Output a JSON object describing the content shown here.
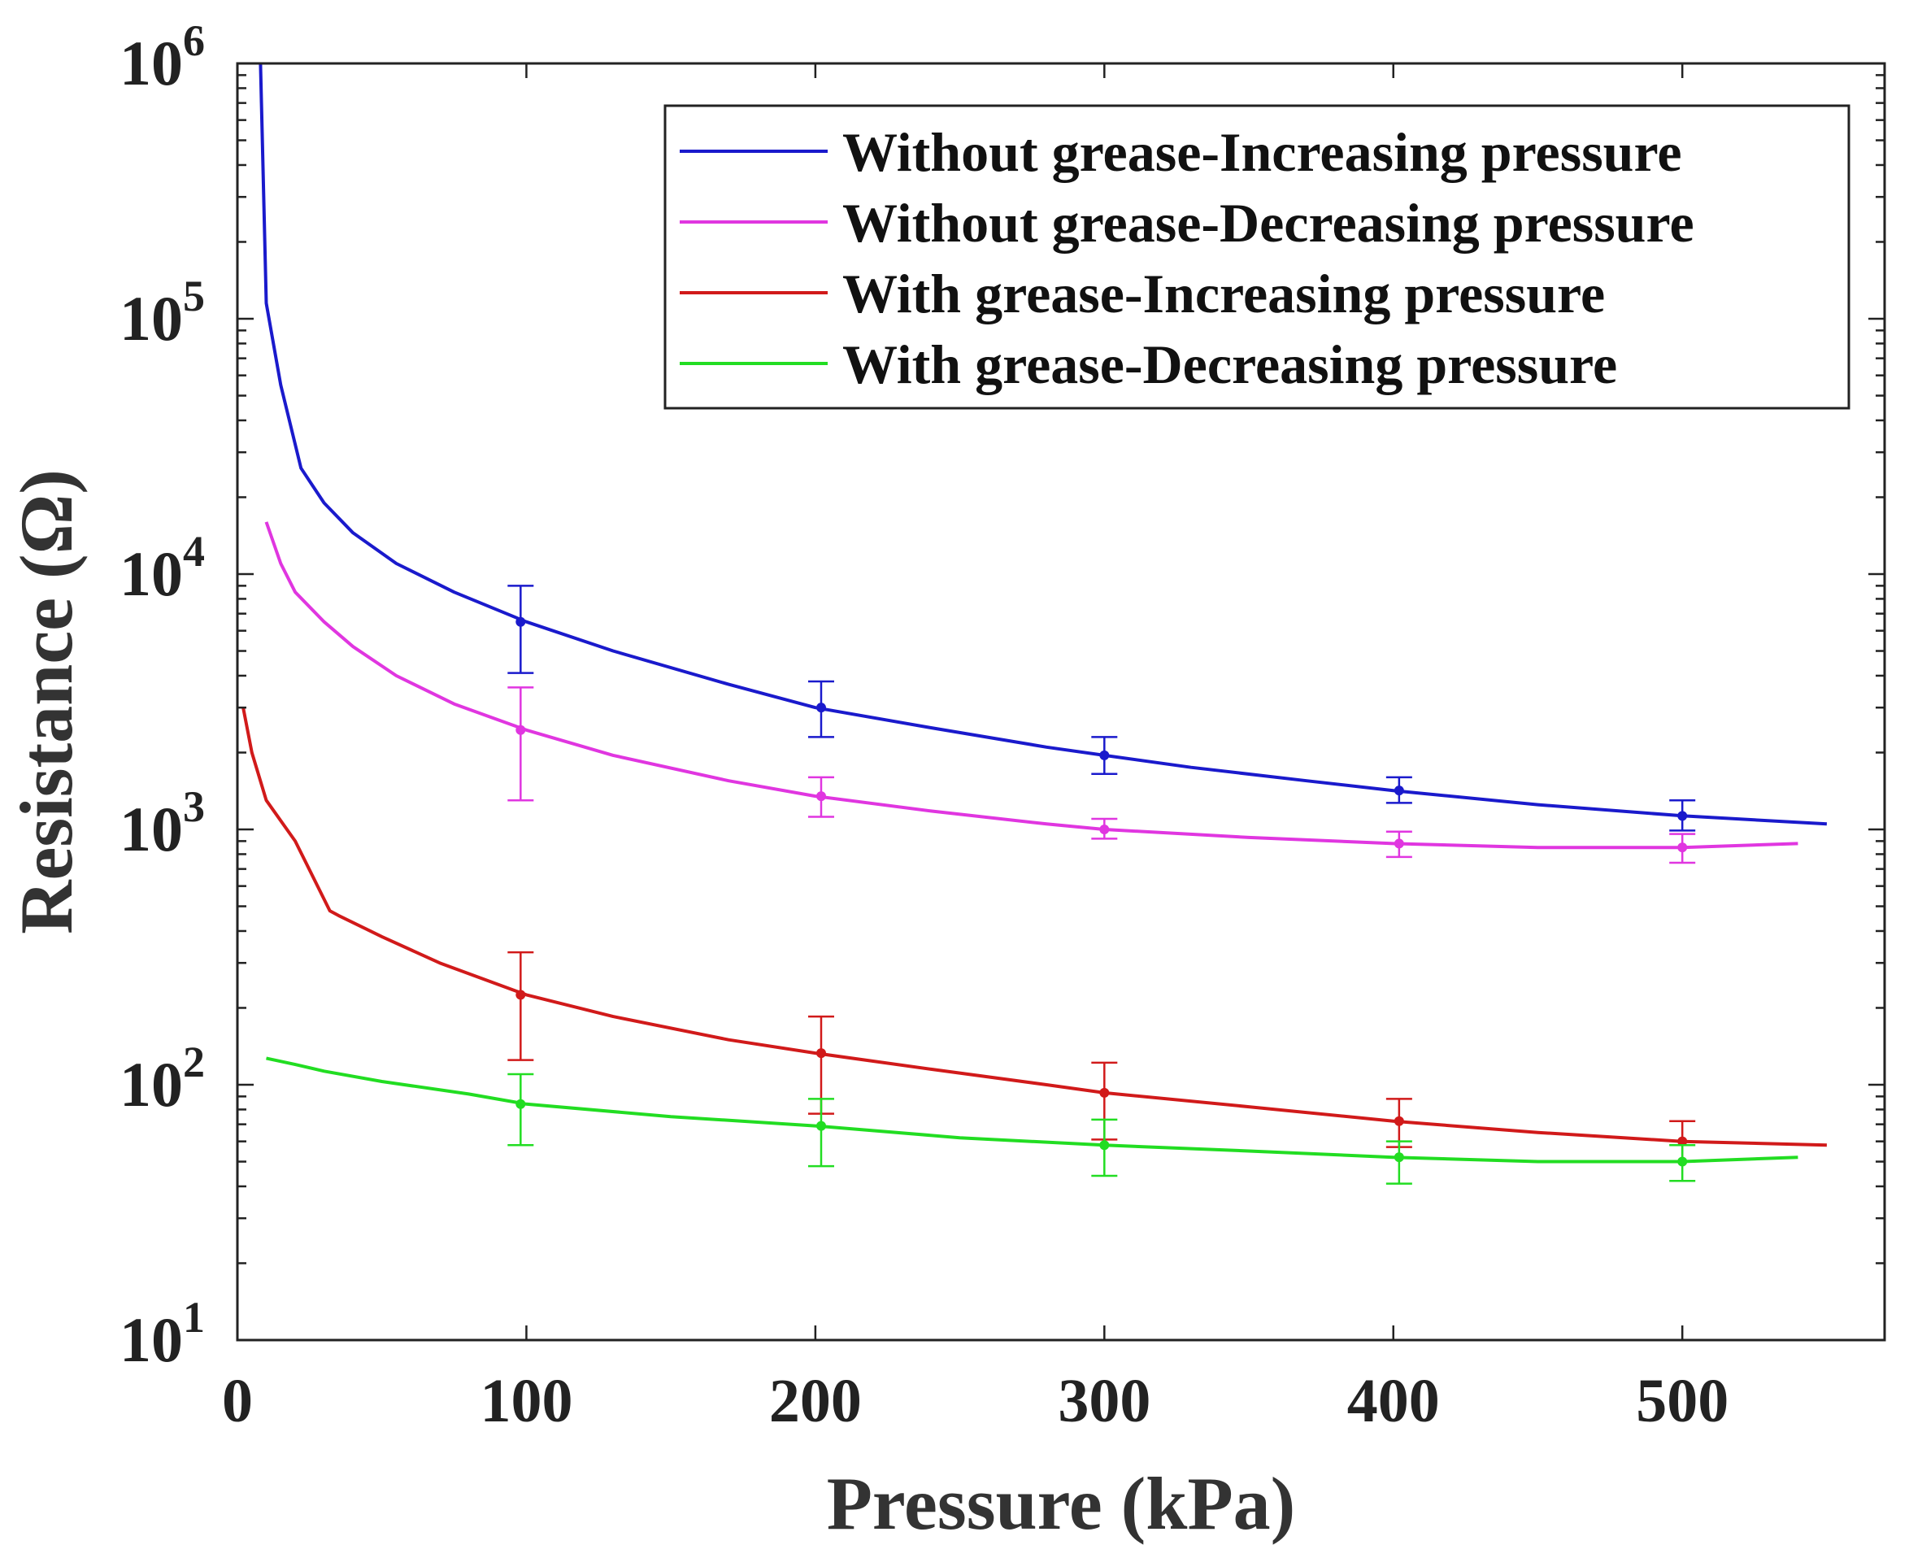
{
  "chart_data": {
    "type": "line",
    "title": "",
    "xlabel": "Pressure (kPa)",
    "ylabel": "Resistance (Ω)",
    "xlim": [
      0,
      570
    ],
    "ylim": [
      10,
      1000000
    ],
    "yscale": "log",
    "x_ticks": [
      0,
      100,
      200,
      300,
      400,
      500
    ],
    "x_tick_labels": [
      "0",
      "100",
      "200",
      "300",
      "400",
      "500"
    ],
    "y_ticks": [
      10,
      100,
      1000,
      10000,
      100000,
      1000000
    ],
    "y_tick_labels": [
      {
        "base": "10",
        "exp": "1"
      },
      {
        "base": "10",
        "exp": "2"
      },
      {
        "base": "10",
        "exp": "3"
      },
      {
        "base": "10",
        "exp": "4"
      },
      {
        "base": "10",
        "exp": "5"
      },
      {
        "base": "10",
        "exp": "6"
      }
    ],
    "legend_position": "top-right",
    "series": [
      {
        "name": "Without grease-Increasing pressure",
        "color": "#1a1acc",
        "x": [
          8,
          10,
          15,
          22,
          30,
          40,
          55,
          75,
          100,
          130,
          170,
          200,
          240,
          280,
          300,
          330,
          370,
          400,
          450,
          500,
          550
        ],
        "y": [
          1000000,
          115000,
          55000,
          26000,
          19000,
          14500,
          11000,
          8500,
          6500,
          5000,
          3700,
          3000,
          2500,
          2100,
          1950,
          1750,
          1550,
          1420,
          1250,
          1130,
          1050
        ],
        "error_x": [
          98,
          202,
          300,
          402,
          500
        ],
        "error_y": [
          6500,
          3000,
          1950,
          1420,
          1130
        ],
        "error_lo": [
          4100,
          2300,
          1650,
          1270,
          990
        ],
        "error_hi": [
          9000,
          3800,
          2300,
          1600,
          1300
        ]
      },
      {
        "name": "Without grease-Decreasing pressure",
        "color": "#e036e0",
        "x": [
          10,
          15,
          20,
          30,
          40,
          55,
          75,
          100,
          130,
          170,
          200,
          240,
          280,
          300,
          350,
          400,
          450,
          500,
          540
        ],
        "y": [
          16000,
          11000,
          8500,
          6500,
          5200,
          4000,
          3100,
          2450,
          1950,
          1550,
          1350,
          1180,
          1050,
          1000,
          930,
          880,
          850,
          850,
          880
        ],
        "error_x": [
          98,
          202,
          300,
          402,
          500
        ],
        "error_y": [
          2450,
          1350,
          1000,
          880,
          850
        ],
        "error_lo": [
          1300,
          1120,
          920,
          780,
          740
        ],
        "error_hi": [
          3600,
          1600,
          1100,
          980,
          960
        ]
      },
      {
        "name": "With grease-Increasing pressure",
        "color": "#d11a1a",
        "x": [
          2,
          5,
          10,
          20,
          32,
          35,
          50,
          70,
          100,
          130,
          170,
          200,
          240,
          280,
          300,
          350,
          400,
          450,
          500,
          550
        ],
        "y": [
          3000,
          2000,
          1300,
          900,
          480,
          460,
          380,
          300,
          225,
          185,
          150,
          133,
          115,
          100,
          93,
          82,
          72,
          65,
          60,
          58
        ],
        "error_x": [
          98,
          202,
          300,
          402,
          500
        ],
        "error_y": [
          225,
          133,
          93,
          72,
          60
        ],
        "error_lo": [
          125,
          77,
          61,
          57,
          50
        ],
        "error_hi": [
          330,
          185,
          122,
          88,
          72
        ]
      },
      {
        "name": "With grease-Decreasing pressure",
        "color": "#22dd22",
        "x": [
          10,
          20,
          30,
          50,
          80,
          100,
          150,
          200,
          250,
          300,
          350,
          400,
          450,
          500,
          540
        ],
        "y": [
          127,
          120,
          113,
          103,
          92,
          84,
          75,
          69,
          62,
          58,
          55,
          52,
          50,
          50,
          52
        ],
        "error_x": [
          98,
          202,
          300,
          402,
          500
        ],
        "error_y": [
          84,
          69,
          58,
          52,
          50
        ],
        "error_lo": [
          58,
          48,
          44,
          41,
          42
        ],
        "error_hi": [
          110,
          88,
          73,
          60,
          58
        ]
      }
    ]
  }
}
